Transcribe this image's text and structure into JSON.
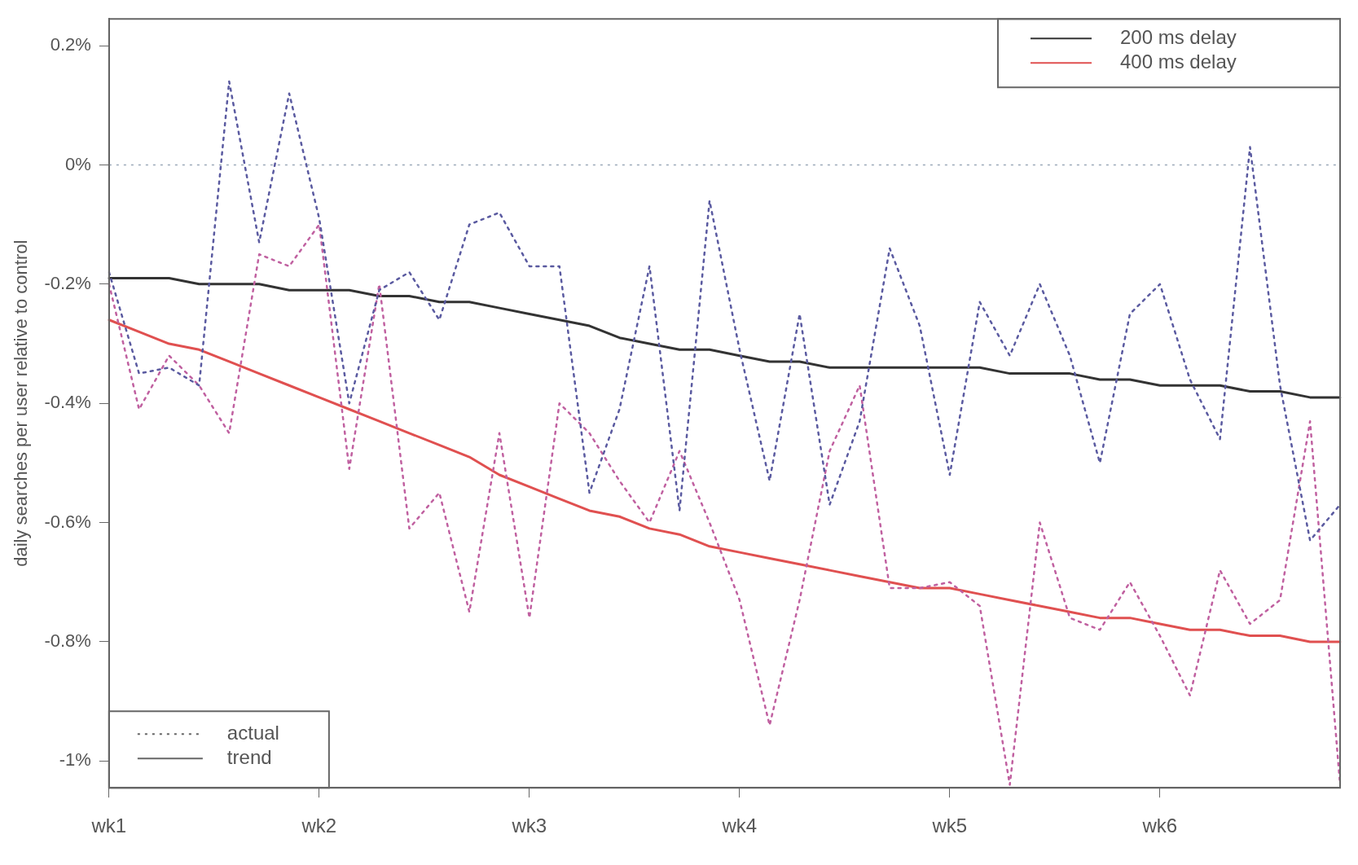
{
  "chart_data": {
    "type": "line",
    "ylabel": "daily searches per user relative to control",
    "categories": [
      "wk1",
      null,
      null,
      null,
      null,
      null,
      null,
      "wk2",
      null,
      null,
      null,
      null,
      null,
      null,
      "wk3",
      null,
      null,
      null,
      null,
      null,
      null,
      "wk4",
      null,
      null,
      null,
      null,
      null,
      null,
      "wk5",
      null,
      null,
      null,
      null,
      null,
      null,
      "wk6",
      null,
      null,
      null,
      null,
      null,
      null
    ],
    "ylim": [
      -1.045,
      0.245
    ],
    "yticks": [
      {
        "value": -1,
        "label": "-1%"
      },
      {
        "value": -0.8,
        "label": "-0.8%"
      },
      {
        "value": -0.6,
        "label": "-0.6%"
      },
      {
        "value": -0.4,
        "label": "-0.4%"
      },
      {
        "value": -0.2,
        "label": "-0.2%"
      },
      {
        "value": 0,
        "label": "0%"
      },
      {
        "value": 0.2,
        "label": "0.2%"
      }
    ],
    "series": [
      {
        "color": "#5a5aa0",
        "line_style": "dotted",
        "values": [
          -0.18,
          -0.35,
          -0.34,
          -0.37,
          0.14,
          -0.13,
          0.12,
          -0.09,
          -0.4,
          -0.21,
          -0.18,
          -0.26,
          -0.1,
          -0.08,
          -0.17,
          -0.17,
          -0.55,
          -0.41,
          -0.17,
          -0.58,
          -0.06,
          -0.31,
          -0.53,
          -0.25,
          -0.57,
          -0.43,
          -0.14,
          -0.27,
          -0.52,
          -0.23,
          -0.32,
          -0.2,
          -0.32,
          -0.5,
          -0.25,
          -0.2,
          -0.36,
          -0.46,
          0.03,
          -0.37,
          -0.63,
          -0.57
        ]
      },
      {
        "color": "#c060a0",
        "line_style": "dotted",
        "values": [
          -0.2,
          -0.41,
          -0.32,
          -0.37,
          -0.45,
          -0.15,
          -0.17,
          -0.1,
          -0.51,
          -0.2,
          -0.61,
          -0.55,
          -0.75,
          -0.45,
          -0.76,
          -0.4,
          -0.45,
          -0.53,
          -0.6,
          -0.48,
          -0.6,
          -0.73,
          -0.94,
          -0.73,
          -0.48,
          -0.37,
          -0.71,
          -0.71,
          -0.7,
          -0.74,
          -1.04,
          -0.6,
          -0.76,
          -0.78,
          -0.7,
          -0.79,
          -0.89,
          -0.68,
          -0.77,
          -0.73,
          -0.43,
          -1.04
        ]
      },
      {
        "name": "200 ms delay",
        "color": "#333333",
        "line_style": "solid",
        "values": [
          -0.19,
          -0.19,
          -0.19,
          -0.2,
          -0.2,
          -0.2,
          -0.21,
          -0.21,
          -0.21,
          -0.22,
          -0.22,
          -0.23,
          -0.23,
          -0.24,
          -0.25,
          -0.26,
          -0.27,
          -0.29,
          -0.3,
          -0.31,
          -0.31,
          -0.32,
          -0.33,
          -0.33,
          -0.34,
          -0.34,
          -0.34,
          -0.34,
          -0.34,
          -0.34,
          -0.35,
          -0.35,
          -0.35,
          -0.36,
          -0.36,
          -0.37,
          -0.37,
          -0.37,
          -0.38,
          -0.38,
          -0.39,
          -0.39
        ]
      },
      {
        "name": "400 ms delay",
        "color": "#e05050",
        "line_style": "solid",
        "values": [
          -0.26,
          -0.28,
          -0.3,
          -0.31,
          -0.33,
          -0.35,
          -0.37,
          -0.39,
          -0.41,
          -0.43,
          -0.45,
          -0.47,
          -0.49,
          -0.52,
          -0.54,
          -0.56,
          -0.58,
          -0.59,
          -0.61,
          -0.62,
          -0.64,
          -0.65,
          -0.66,
          -0.67,
          -0.68,
          -0.69,
          -0.7,
          -0.71,
          -0.71,
          -0.72,
          -0.73,
          -0.74,
          -0.75,
          -0.76,
          -0.76,
          -0.77,
          -0.78,
          -0.78,
          -0.79,
          -0.79,
          -0.8,
          -0.8
        ]
      }
    ],
    "ref_lines": [
      {
        "axis": "y",
        "value": 0,
        "color": "#9aa8b8",
        "line_style": "dotted"
      }
    ],
    "annotations": [
      "actual",
      "trend"
    ],
    "legend": "top right",
    "marker": "none",
    "grid": false
  }
}
